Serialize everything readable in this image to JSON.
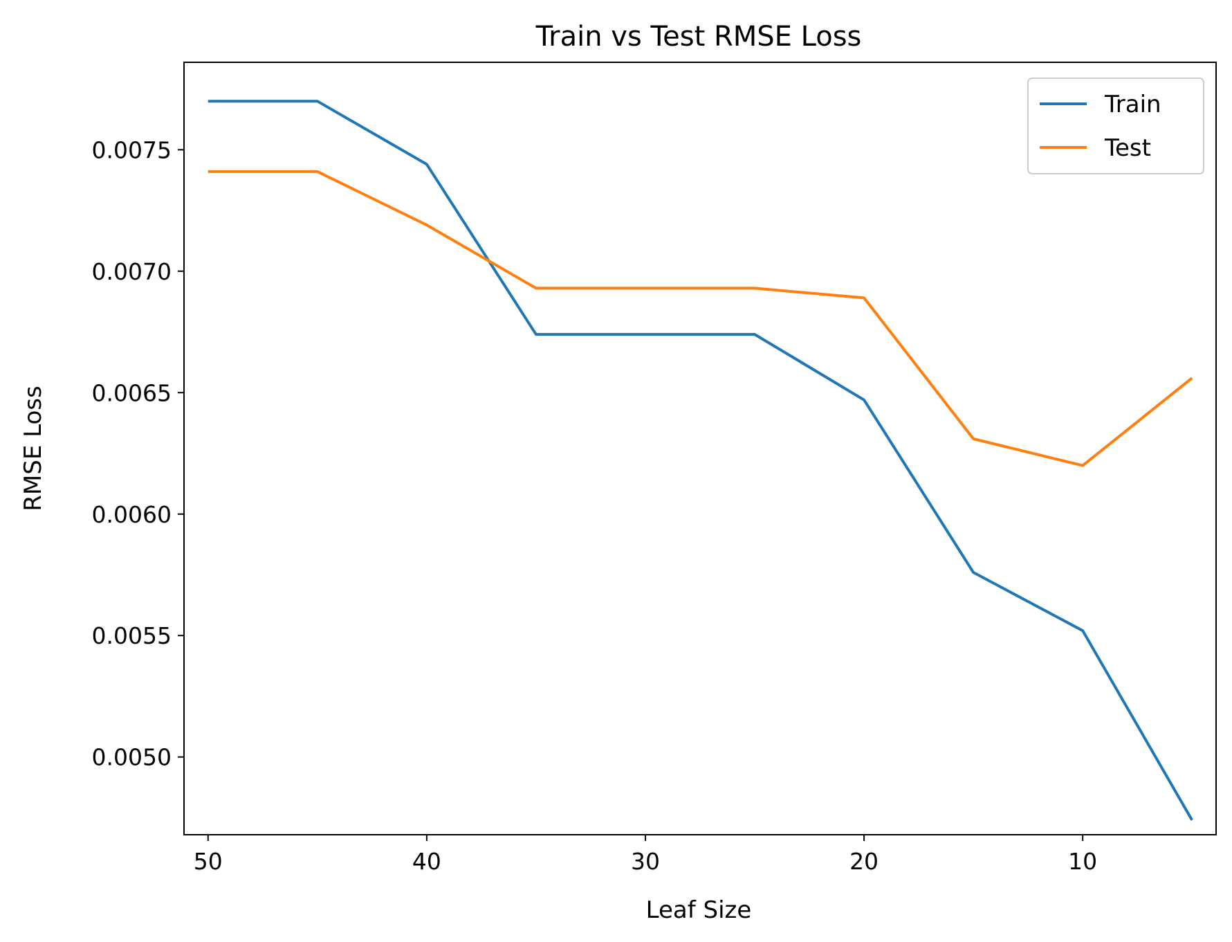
{
  "chart_data": {
    "type": "line",
    "title": "Train vs Test RMSE Loss",
    "xlabel": "Leaf Size",
    "ylabel": "RMSE Loss",
    "x": [
      50,
      45,
      40,
      35,
      30,
      25,
      20,
      15,
      10,
      5
    ],
    "x_reversed": true,
    "xlim": [
      51.1,
      3.9
    ],
    "ylim": [
      0.00468,
      0.00786
    ],
    "x_ticks": [
      50,
      40,
      30,
      20,
      10
    ],
    "x_tick_labels": [
      "50",
      "40",
      "30",
      "20",
      "10"
    ],
    "y_ticks": [
      0.005,
      0.0055,
      0.006,
      0.0065,
      0.007,
      0.0075
    ],
    "y_tick_labels": [
      "0.0050",
      "0.0055",
      "0.0060",
      "0.0065",
      "0.0070",
      "0.0075"
    ],
    "grid": false,
    "legend_position": "top-right",
    "series": [
      {
        "name": "Train",
        "color": "#1f77b4",
        "values": [
          0.0077,
          0.0077,
          0.00744,
          0.00674,
          0.00674,
          0.00674,
          0.00647,
          0.00576,
          0.00552,
          0.00474
        ]
      },
      {
        "name": "Test",
        "color": "#ff7f0e",
        "values": [
          0.00741,
          0.00741,
          0.00719,
          0.00693,
          0.00693,
          0.00693,
          0.00689,
          0.00631,
          0.0062,
          0.00656
        ]
      }
    ]
  }
}
